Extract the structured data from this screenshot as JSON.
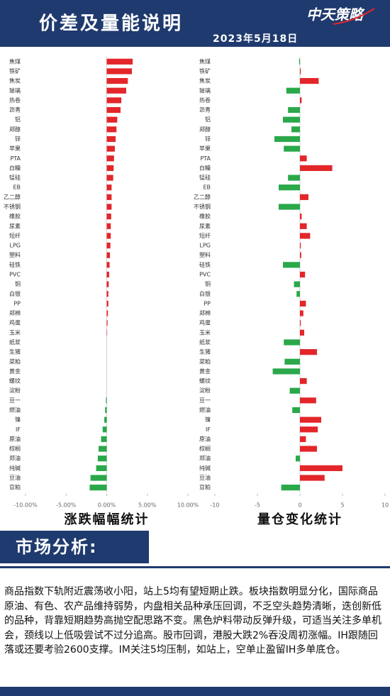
{
  "header": {
    "title": "价差及量能说明",
    "logo": "中天策略",
    "date": "2023年5月18日"
  },
  "chart_data": [
    {
      "type": "bar",
      "orientation": "horizontal",
      "title": "涨跌幅幅统计",
      "categories": [
        "焦煤",
        "铁矿",
        "焦炭",
        "玻璃",
        "热卷",
        "沥青",
        "铝",
        "郑醇",
        "锌",
        "苹果",
        "PTA",
        "白糖",
        "锰硅",
        "EB",
        "乙二醇",
        "不锈钢",
        "橡胶",
        "尿素",
        "短纤",
        "LPG",
        "塑料",
        "硅铁",
        "PVC",
        "铜",
        "白银",
        "PP",
        "郑棉",
        "鸡蛋",
        "玉米",
        "纸浆",
        "生猪",
        "菜粕",
        "黄金",
        "螺纹",
        "淀粉",
        "豆一",
        "燃油",
        "镍",
        "IF",
        "原油",
        "棕榈",
        "郑油",
        "纯碱",
        "豆油",
        "豆粕"
      ],
      "values": [
        3.2,
        3.1,
        2.6,
        2.4,
        1.8,
        1.7,
        1.3,
        1.2,
        1.1,
        1.0,
        0.9,
        0.85,
        0.8,
        0.6,
        0.6,
        0.6,
        0.55,
        0.5,
        0.5,
        0.45,
        0.4,
        0.35,
        0.3,
        0.25,
        0.2,
        0.2,
        0.15,
        0.1,
        0.05,
        0,
        0,
        0,
        0,
        0,
        0,
        -0.1,
        -0.2,
        -0.3,
        -0.5,
        -0.7,
        -1.0,
        -1.1,
        -1.3,
        -2.0,
        -2.1
      ],
      "positive_color": "#e3262a",
      "negative_color": "#2aa84a",
      "xlim": [
        -10,
        10
      ],
      "xticks": [
        {
          "value": -10,
          "label": "-10.00%"
        },
        {
          "value": -5,
          "label": "-5.00%"
        },
        {
          "value": 0,
          "label": "0.00%"
        },
        {
          "value": 5,
          "label": "5.00%"
        },
        {
          "value": 10,
          "label": "10.00%"
        }
      ]
    },
    {
      "type": "bar",
      "orientation": "horizontal",
      "title": "量仓变化统计",
      "categories": [
        "焦煤",
        "铁矿",
        "焦炭",
        "玻璃",
        "热卷",
        "沥青",
        "铝",
        "郑醇",
        "锌",
        "苹果",
        "PTA",
        "白糖",
        "锰硅",
        "EB",
        "乙二醇",
        "不锈钢",
        "橡胶",
        "尿素",
        "短纤",
        "LPG",
        "塑料",
        "硅铁",
        "PVC",
        "铜",
        "白银",
        "PP",
        "郑棉",
        "鸡蛋",
        "玉米",
        "纸浆",
        "生猪",
        "菜粕",
        "黄金",
        "螺纹",
        "淀粉",
        "豆一",
        "燃油",
        "镍",
        "IF",
        "原油",
        "棕榈",
        "郑油",
        "纯碱",
        "豆油",
        "豆粕"
      ],
      "values": [
        -0.1,
        0.1,
        2.2,
        -1.6,
        0.2,
        -1.4,
        -2.0,
        -1.0,
        -3.0,
        -1.9,
        0.8,
        3.8,
        -1.4,
        -2.5,
        1.0,
        -2.5,
        0.2,
        0.8,
        1.2,
        0.1,
        0.15,
        -2.0,
        0.6,
        -0.7,
        -0.4,
        0.7,
        0.4,
        0.1,
        0.5,
        -1.9,
        2.0,
        -1.8,
        -3.2,
        0.8,
        -1.2,
        1.9,
        -0.9,
        2.5,
        2.1,
        0.7,
        2.0,
        -0.5,
        5.0,
        2.9,
        -2.2
      ],
      "positive_color": "#e3262a",
      "negative_color": "#2aa84a",
      "xlim": [
        -10,
        10
      ],
      "xticks": [
        -10,
        -5,
        0,
        5,
        10
      ]
    }
  ],
  "section": {
    "title": "市场分析:",
    "text": "商品指数下轨附近震荡收小阳，站上5均有望短期止跌。板块指数明显分化，国际商品原油、有色、农产品维持弱势，内盘相关品种承压回调，不乏空头趋势清晰，迭创新低的品种，背靠短期趋势高抛空配思路不变。黑色炉料带动反弹升级，可适当关注多单机会，颈线以上低吸尝试不过分追高。股市回调，港股大跌2%吞没周初涨幅。IH跟随回落或还要考验2600支撑。IM关注5均压制，如站上，空单止盈留IH多单底仓。"
  }
}
